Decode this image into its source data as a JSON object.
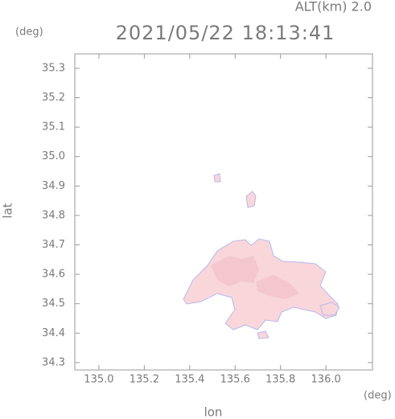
{
  "chart_data": {
    "type": "map",
    "title": "2021/05/22 18:13:41",
    "altitude_label": "ALT(km) 2.0",
    "x_label": "lon",
    "y_label": "lat",
    "x_unit": "(deg)",
    "y_unit": "(deg)",
    "xlim": [
      134.894,
      136.205
    ],
    "ylim": [
      34.275,
      35.349
    ],
    "xticks": [
      {
        "value": 135,
        "label": "135.0"
      },
      135.2,
      135.4,
      135.6,
      135.8,
      {
        "value": 136,
        "label": "136.0"
      }
    ],
    "yticks": [
      34.3,
      34.4,
      34.5,
      34.6,
      34.7,
      34.8,
      34.9,
      {
        "value": 35,
        "label": "35.0"
      },
      35.1,
      35.2,
      35.3
    ],
    "grid": false
  }
}
